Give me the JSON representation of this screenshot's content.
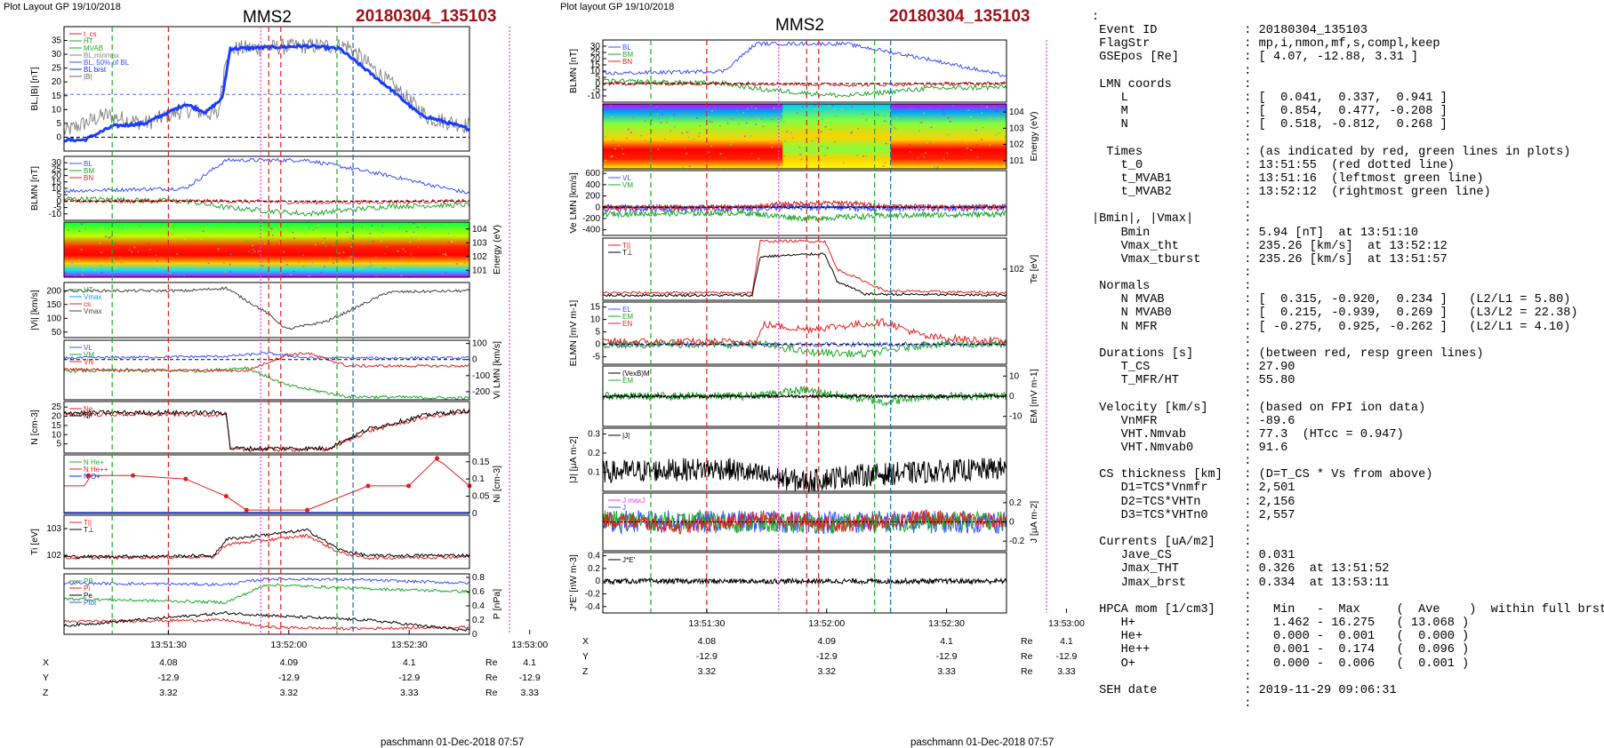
{
  "left_panel": {
    "header": "Plot Layout GP 19/10/2018",
    "title": "MMS2",
    "event": "20180304_135103",
    "footer": "paschmann 01-Dec-2018 07:57"
  },
  "middle_panel": {
    "header": "Plot layout GP 19/10/2018",
    "title": "MMS2",
    "event": "20180304_135103",
    "footer": "paschmann 01-Dec-2018 07:57"
  },
  "chart_data": [
    {
      "type": "line",
      "figure": "left",
      "time_ticks": [
        "13:51:30",
        "13:52:00",
        "13:52:30",
        "13:53:00"
      ],
      "position_table": [
        {
          "label": "X",
          "values": [
            "4.08",
            "4.09",
            "4.1",
            "4.1"
          ],
          "unit": "Re"
        },
        {
          "label": "Y",
          "values": [
            "-12.9",
            "-12.9",
            "-12.9",
            "-12.9"
          ],
          "unit": "Re"
        },
        {
          "label": "Z",
          "values": [
            "3.32",
            "3.32",
            "3.33",
            "3.33"
          ],
          "unit": "Re"
        }
      ],
      "panels": [
        {
          "id": "b",
          "ylabel": "BL,|B| [nT]",
          "ylim": [
            -5,
            40
          ],
          "ticks": [
            0,
            5,
            10,
            15,
            20,
            25,
            30,
            35
          ],
          "legend": [
            "t_cs",
            "HT",
            "MVAB",
            "BL,minmax",
            "BL, 50% of BL",
            "BL brst",
            "|B|"
          ]
        },
        {
          "id": "blmn",
          "ylabel": "BLMN [nT]",
          "ylim": [
            -15,
            35
          ],
          "ticks": [
            -10,
            -5,
            0,
            5,
            10,
            15,
            20,
            25,
            30
          ],
          "legend": [
            "BL",
            "BM",
            "BN"
          ]
        },
        {
          "id": "spec",
          "ylabel": "Energy (eV)",
          "ticks": [
            "10^1",
            "10^2",
            "10^3",
            "10^4"
          ]
        },
        {
          "id": "vi",
          "ylabel": "|Vi| [km/s]",
          "ticks": [
            50,
            100,
            150,
            200
          ],
          "legend": [
            "HT",
            "Vmax",
            "cs",
            "Vmax"
          ]
        },
        {
          "id": "vilmn",
          "ylabel": "Vi LMN [km/s]",
          "ticks": [
            100,
            0,
            -100,
            -200
          ],
          "legend": [
            "VL",
            "VM",
            "VN"
          ]
        },
        {
          "id": "n",
          "ylabel": "N [cm-3]",
          "ticks": [
            5,
            10,
            15,
            20,
            25
          ],
          "legend": [
            "Ne",
            "Ni"
          ]
        },
        {
          "id": "ni",
          "ylabel": "Ni [cm-3]",
          "ticks": [
            0.0,
            0.05,
            0.1,
            0.15
          ],
          "legend": [
            "N He+",
            "N He++",
            "N O+"
          ]
        },
        {
          "id": "ti",
          "ylabel": "Ti [eV]",
          "ticks": [
            "10^2",
            "10^3"
          ],
          "legend": [
            "T||",
            "T⊥"
          ]
        },
        {
          "id": "p",
          "ylabel": "P [nPa]",
          "ticks": [
            0.0,
            0.2,
            0.4,
            0.6,
            0.8
          ],
          "legend": [
            "PB",
            "Pi",
            "Pe",
            "Ptot"
          ]
        }
      ]
    },
    {
      "type": "line",
      "figure": "middle",
      "time_ticks": [
        "13:51:30",
        "13:52:00",
        "13:52:30",
        "13:53:00"
      ],
      "position_table": [
        {
          "label": "X",
          "values": [
            "4.08",
            "4.09",
            "4.1",
            "4.1"
          ],
          "unit": "Re"
        },
        {
          "label": "Y",
          "values": [
            "-12.9",
            "-12.9",
            "-12.9",
            "-12.9"
          ],
          "unit": "Re"
        },
        {
          "label": "Z",
          "values": [
            "3.32",
            "3.32",
            "3.33",
            "3.33"
          ],
          "unit": "Re"
        }
      ],
      "panels": [
        {
          "id": "blmn",
          "ylabel": "BLMN [nT]",
          "ticks": [
            -10,
            -5,
            0,
            5,
            10,
            15,
            20,
            25,
            30
          ],
          "legend": [
            "BL",
            "BM",
            "BN"
          ]
        },
        {
          "id": "espec",
          "ylabel": "Energy (eV)",
          "ticks": [
            "10^1",
            "10^2",
            "10^3",
            "10^4"
          ]
        },
        {
          "id": "ve",
          "ylabel": "Ve LMN [km/s]",
          "ticks": [
            -400,
            -200,
            0,
            200,
            400,
            600
          ],
          "legend": [
            "VL",
            "VM"
          ]
        },
        {
          "id": "te",
          "ylabel": "Te [eV]",
          "ticks": [
            "10^2"
          ],
          "legend": [
            "T||",
            "T⊥"
          ]
        },
        {
          "id": "e",
          "ylabel": "ELMN [mV m-1]",
          "ticks": [
            -5,
            0,
            5,
            10,
            15
          ],
          "legend": [
            "EL",
            "EM",
            "EN"
          ]
        },
        {
          "id": "em",
          "ylabel": "EM [mV m-1]",
          "ticks": [
            -10,
            0,
            10
          ],
          "legend": [
            "(VexB)M",
            "EM"
          ]
        },
        {
          "id": "jabs",
          "ylabel": "|J| [μA m-2]",
          "ticks": [
            0.1,
            0.2,
            0.3
          ],
          "legend": [
            "|J|"
          ]
        },
        {
          "id": "j",
          "ylabel": "J [μA m-2]",
          "ticks": [
            -0.2,
            0.0,
            0.2
          ],
          "legend": [
            "J maxJ",
            "J"
          ]
        },
        {
          "id": "je",
          "ylabel": "J*E' [nW m-3]",
          "ticks": [
            -0.4,
            -0.2,
            0.0,
            0.2,
            0.4
          ],
          "legend": [
            "J*E'"
          ]
        }
      ]
    }
  ],
  "info_lines": [
    ":",
    " Event ID            : 20180304_135103",
    " FlagStr             : mp,i,nmon,mf,s,compl,keep",
    " GSEpos [Re]         : [ 4.07, -12.88, 3.31 ]",
    "                     :",
    " LMN coords          :",
    "    L                : [  0.041,  0.337,  0.941 ]",
    "    M                : [  0.854,  0.477, -0.208 ]",
    "    N                : [  0.518, -0.812,  0.268 ]",
    "                     :",
    "  Times              : (as indicated by red, green lines in plots)",
    "    t_0              : 13:51:55  (red dotted line)",
    "    t_MVAB1          : 13:51:16  (leftmost green line)",
    "    t_MVAB2          : 13:52:12  (rightmost green line)",
    "                     :",
    "|Bmin|, |Vmax|       :",
    "    Bmin             : 5.94 [nT]  at 13:51:10",
    "    Vmax_tht         : 235.26 [km/s]  at 13:52:12",
    "    Vmax_tburst      : 235.26 [km/s]  at 13:51:57",
    "                     :",
    " Normals             :",
    "    N MVAB           : [  0.315, -0.920,  0.234 ]   (L2/L1 = 5.80)",
    "    N MVAB0          : [  0.215, -0.939,  0.269 ]   (L3/L2 = 22.38)",
    "    N MFR            : [ -0.275,  0.925, -0.262 ]   (L2/L1 = 4.10)",
    "                     :",
    " Durations [s]       : (between red, resp green lines)",
    "    T_CS             : 27.90",
    "    T_MFR/HT         : 55.80",
    "                     :",
    " Velocity [km/s]     : (based on FPI ion data)",
    "    VnMFR            : -89.6",
    "    VHT.Nmvab        : 77.3  (HTcc = 0.947)",
    "    VHT.Nmvab0       : 91.6",
    "                     :",
    " CS thickness [km]   : (D=T_CS * Vs from above)",
    "    D1=TCS*Vnmfr     : 2,501",
    "    D2=TCS*VHTn      : 2,156",
    "    D3=TCS*VHTn0     : 2,557",
    "                     :",
    " Currents [uA/m2]    :",
    "    Jave_CS          : 0.031",
    "    Jmax_THT         : 0.326  at 13:51:52",
    "    Jmax_brst        : 0.334  at 13:53:11",
    "                     :",
    " HPCA mom [1/cm3]    :   Min   -  Max     (  Ave    )  within full brst int",
    "    H+               :   1.462 - 16.275   ( 13.068 )",
    "    He+              :   0.000 -  0.001   (  0.000 )",
    "    He++             :   0.001 -  0.174   (  0.096 )",
    "    O+               :   0.000 -  0.006   (  0.001 )",
    "                     :",
    " SEH date            : 2019-11-29 09:06:31",
    "                     :"
  ]
}
